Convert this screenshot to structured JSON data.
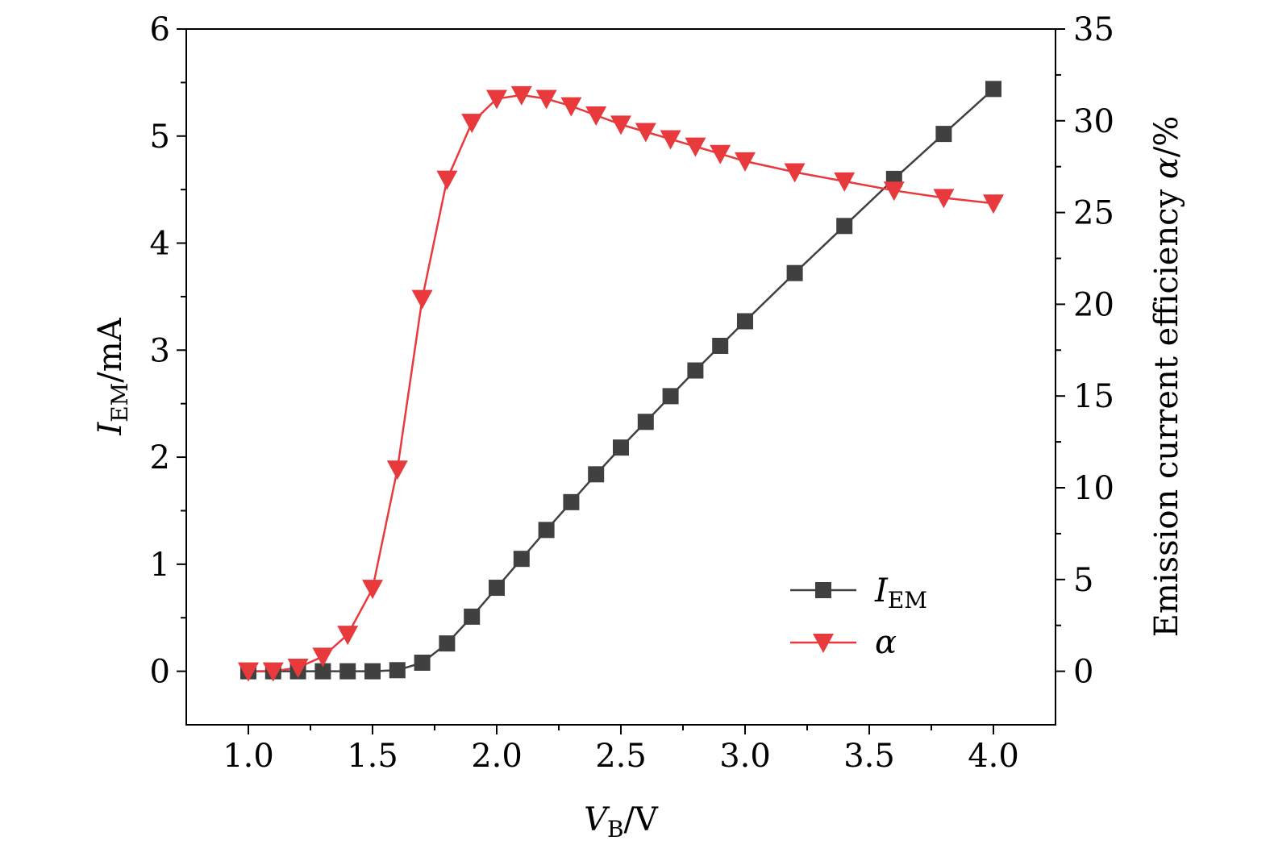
{
  "chart_data": {
    "type": "line",
    "xlabel": {
      "main": "V",
      "sub": "B",
      "unit": "/V"
    },
    "ylabel_left": {
      "main": "I",
      "sub": "EM",
      "unit": "/mA"
    },
    "ylabel_right": {
      "prefix": "Emission current efficiency ",
      "symbol": "α",
      "unit": "/%"
    },
    "xlim": [
      0.75,
      4.25
    ],
    "ylim_left": [
      -0.5,
      6
    ],
    "ylim_right": [
      -2.917,
      35
    ],
    "x_ticks": [
      "1.0",
      "1.5",
      "2.0",
      "2.5",
      "3.0",
      "3.5",
      "4.0"
    ],
    "y_left_ticks": [
      "0",
      "1",
      "2",
      "3",
      "4",
      "5",
      "6"
    ],
    "y_right_ticks": [
      "0",
      "5",
      "10",
      "15",
      "20",
      "25",
      "30",
      "35"
    ],
    "grid": false,
    "legend_position": "bottom-right",
    "series": [
      {
        "name": "I",
        "name_sub": "EM",
        "axis": "left",
        "color": "#404040",
        "marker": "square",
        "x": [
          1.0,
          1.1,
          1.2,
          1.3,
          1.4,
          1.5,
          1.6,
          1.7,
          1.8,
          1.9,
          2.0,
          2.1,
          2.2,
          2.3,
          2.4,
          2.5,
          2.6,
          2.7,
          2.8,
          2.9,
          3.0,
          3.2,
          3.4,
          3.6,
          3.8,
          4.0
        ],
        "values": [
          0.0,
          0.0,
          0.0,
          0.0,
          0.0,
          0.0,
          0.01,
          0.08,
          0.26,
          0.51,
          0.78,
          1.05,
          1.32,
          1.58,
          1.84,
          2.09,
          2.33,
          2.57,
          2.81,
          3.04,
          3.27,
          3.72,
          4.16,
          4.6,
          5.02,
          5.44
        ]
      },
      {
        "name": "α",
        "axis": "right",
        "color": "#e8393d",
        "marker": "triangle-down",
        "x": [
          1.0,
          1.1,
          1.2,
          1.3,
          1.4,
          1.5,
          1.6,
          1.7,
          1.8,
          1.9,
          2.0,
          2.1,
          2.2,
          2.3,
          2.4,
          2.5,
          2.6,
          2.7,
          2.8,
          2.9,
          3.0,
          3.2,
          3.4,
          3.6,
          3.8,
          4.0
        ],
        "values": [
          0.0,
          0.0,
          0.2,
          0.8,
          2.0,
          4.5,
          11.0,
          20.3,
          26.8,
          29.9,
          31.2,
          31.4,
          31.2,
          30.8,
          30.3,
          29.8,
          29.4,
          29.0,
          28.6,
          28.2,
          27.8,
          27.2,
          26.7,
          26.2,
          25.8,
          25.5
        ]
      }
    ]
  }
}
